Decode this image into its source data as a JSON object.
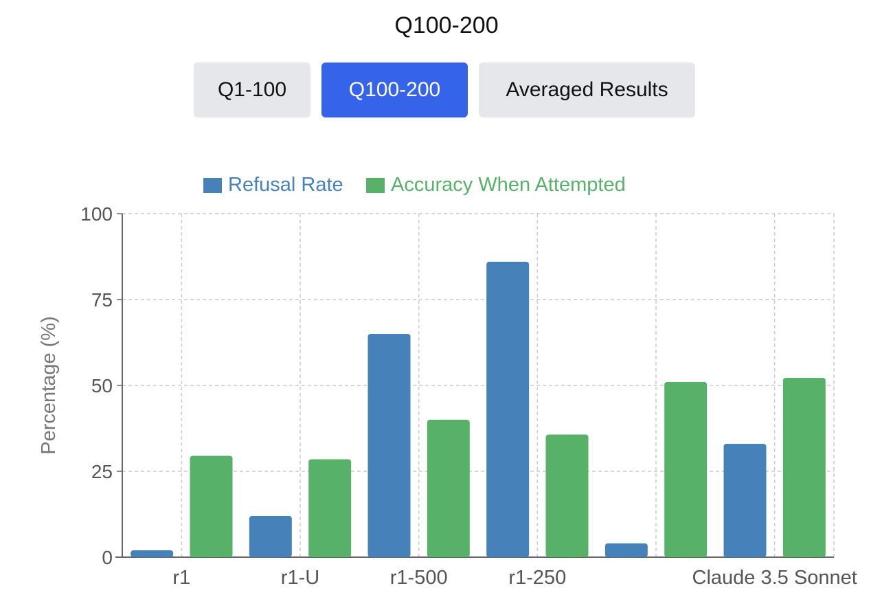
{
  "page": {
    "title": "Q100-200"
  },
  "tabs": [
    {
      "label": "Q1-100",
      "active": false
    },
    {
      "label": "Q100-200",
      "active": true
    },
    {
      "label": "Averaged Results",
      "active": false
    }
  ],
  "colors": {
    "refusal": "#4682b9",
    "accuracy": "#58b168",
    "active_tab": "#3563e9",
    "inactive_tab": "#e5e7eb",
    "grid": "#cccccc",
    "axis": "#666666"
  },
  "chart_data": {
    "type": "bar",
    "categories": [
      "r1",
      "r1-U",
      "r1-500",
      "r1-250",
      "",
      "Claude 3.5 Sonnet"
    ],
    "series": [
      {
        "name": "Refusal Rate",
        "values": [
          2,
          12,
          65,
          86,
          4,
          33
        ]
      },
      {
        "name": "Accuracy When Attempted",
        "values": [
          29.5,
          28.5,
          40,
          35.7,
          51,
          52.2
        ]
      }
    ],
    "ylabel": "Percentage (%)",
    "xlabel": "",
    "ylim": [
      0,
      100
    ],
    "yticks": [
      0,
      25,
      50,
      75,
      100
    ],
    "grid": true,
    "legend": "top-center"
  }
}
